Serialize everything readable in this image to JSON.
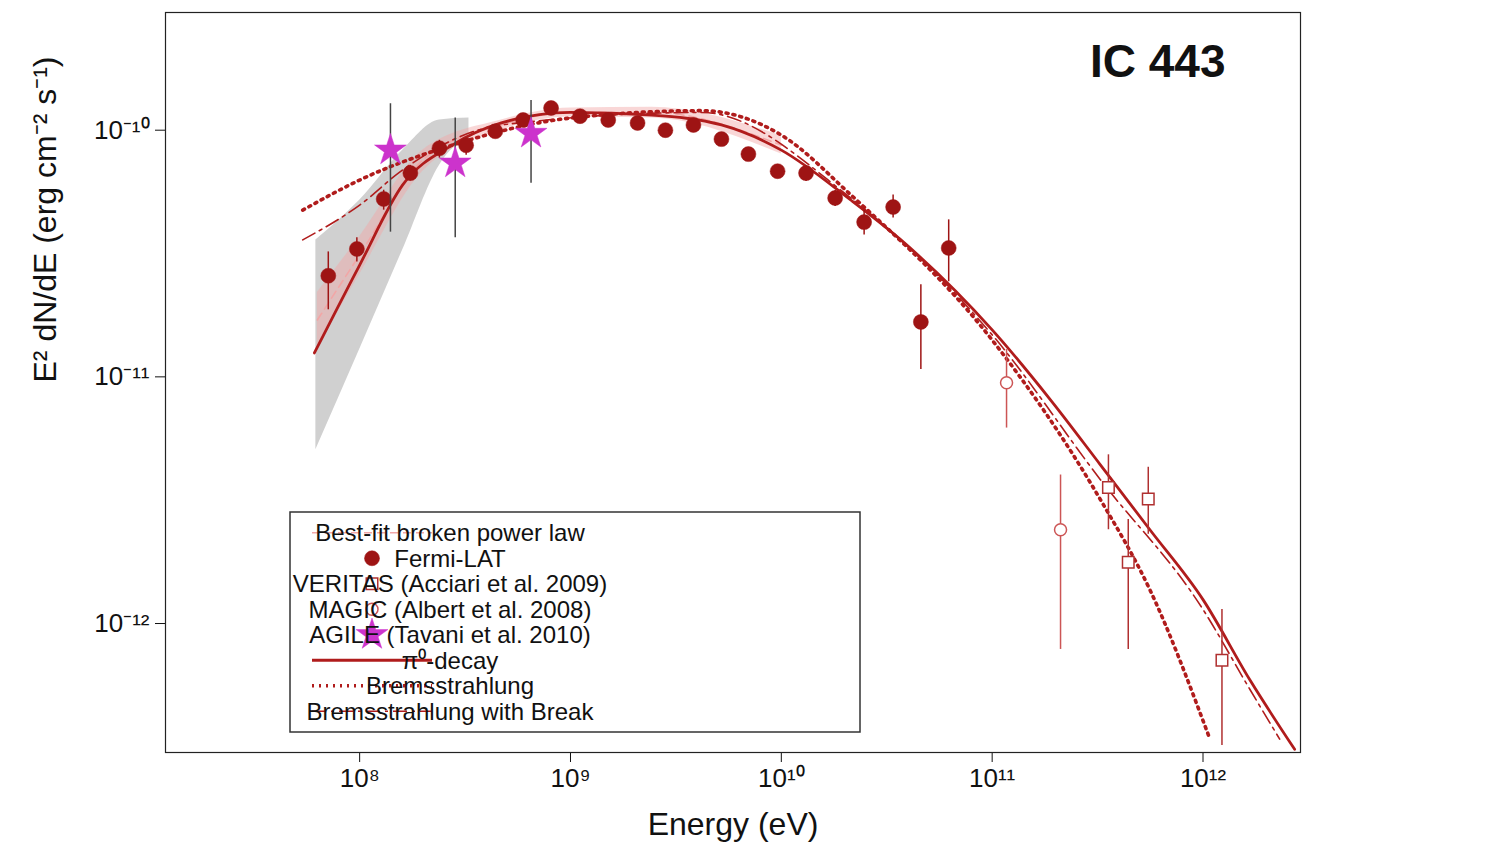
{
  "chart_data": {
    "type": "scatter",
    "title": "IC 443",
    "x_label": "Energy (eV)",
    "y_label": "E² dN/dE (erg cm⁻² s⁻¹)",
    "log": true,
    "xlim": [
      12000000.0,
      2900000000000.0
    ],
    "ylim": [
      3e-13,
      3e-10
    ],
    "xticks": [
      {
        "value": 100000000.0,
        "label": "10⁸"
      },
      {
        "value": 1000000000.0,
        "label": "10⁹"
      },
      {
        "value": 10000000000.0,
        "label": "10¹⁰"
      },
      {
        "value": 100000000000.0,
        "label": "10¹¹"
      },
      {
        "value": 1000000000000.0,
        "label": "10¹²"
      }
    ],
    "yticks": [
      {
        "value": 1e-12,
        "label": "10⁻¹²"
      },
      {
        "value": 1e-11,
        "label": "10⁻¹¹"
      },
      {
        "value": 1e-10,
        "label": "10⁻¹⁰"
      }
    ],
    "legend": "bottom-left",
    "bands": [
      {
        "color": "#c8c8c8",
        "x": [
          62000000.0,
          100000000.0,
          160000000.0,
          239000000.0,
          330000000.0
        ],
        "lower": [
          5.06e-12,
          1.29e-11,
          3.27e-11,
          7.2e-11,
          9.55e-11
        ],
        "upper": [
          3.59e-11,
          5.2e-11,
          8.3e-11,
          1.1e-10,
          1.12e-10
        ]
      }
    ],
    "series": [
      {
        "name": "Best-fit broken power law",
        "type": "line",
        "color": "#f2a6a6",
        "line_style": "dashed",
        "x": [
          63000000.0,
          100000000.0,
          199000000.0,
          470000000.0,
          1000000000.0,
          2430000000.0,
          10000000000.0
        ],
        "values": [
          1.7e-11,
          3.12e-11,
          7.56e-11,
          1.05e-10,
          1.18e-10,
          1.18e-10,
          8.7e-11
        ],
        "band_lower": [
          1.3e-11,
          2.6e-11,
          6.8e-11,
          1e-10,
          1.13e-10,
          1.12e-10,
          8e-11
        ],
        "band_upper": [
          2.2e-11,
          3.7e-11,
          8.3e-11,
          1.1e-10,
          1.23e-10,
          1.24e-10,
          9.5e-11
        ]
      },
      {
        "name": "Fermi-LAT",
        "type": "scatter",
        "color": "#9e1414",
        "marker": "circle",
        "x": [
          71000000.0,
          97000000.0,
          130000000.0,
          174000000.0,
          239000000.0,
          320000000.0,
          440000000.0,
          596000000.0,
          809000000.0,
          1110000000.0,
          1510000000.0,
          2080000000.0,
          2820000000.0,
          3830000000.0,
          5200000000.0,
          6980000000.0,
          9600000000.0,
          13100000000.0,
          18000000000.0,
          24700000000.0,
          33900000000.0,
          45900000000.0,
          62200000000.0
        ],
        "values": [
          2.57e-11,
          3.3e-11,
          5.26e-11,
          6.7e-11,
          8.45e-11,
          8.69e-11,
          9.9e-11,
          1.1e-10,
          1.23e-10,
          1.14e-10,
          1.1e-10,
          1.07e-10,
          1e-10,
          1.05e-10,
          9.2e-11,
          8e-11,
          6.82e-11,
          6.7e-11,
          5.31e-11,
          4.24e-11,
          4.88e-11,
          1.67e-11,
          3.33e-11
        ],
        "y_lower": [
          1.87e-11,
          2.92e-11,
          4.74e-11,
          6.22e-11,
          7.7e-11,
          7.92e-11,
          9.5e-11,
          1.05e-10,
          1.18e-10,
          1.09e-10,
          1.05e-10,
          1.02e-10,
          9.6e-11,
          1e-10,
          8.8e-11,
          7.6e-11,
          6.4e-11,
          6.2e-11,
          4.9e-11,
          3.76e-11,
          4.41e-11,
          1.07e-11,
          2.43e-11
        ],
        "y_upper": [
          3.21e-11,
          3.66e-11,
          5.71e-11,
          7.2e-11,
          9.1e-11,
          9.28e-11,
          1.03e-10,
          1.15e-10,
          1.28e-10,
          1.19e-10,
          1.15e-10,
          1.12e-10,
          1.04e-10,
          1.1e-10,
          9.6e-11,
          8.4e-11,
          7.2e-11,
          7.2e-11,
          5.7e-11,
          4.74e-11,
          5.46e-11,
          2.36e-11,
          4.33e-11
        ]
      },
      {
        "name": "VERITAS (Acciari et al. 2009)",
        "type": "scatter",
        "color": "#b03030",
        "marker": "open-square",
        "x": [
          356000000000.0,
          442000000000.0,
          550000000000.0,
          1230000000000.0
        ],
        "values": [
          3.56e-12,
          1.77e-12,
          3.2e-12,
          7.1e-13
        ],
        "y_lower": [
          2.4e-12,
          7.85e-13,
          2.3e-12,
          3.2e-13
        ],
        "y_upper": [
          4.83e-12,
          2.64e-12,
          4.3e-12,
          1.14e-12
        ]
      },
      {
        "name": "MAGIC (Albert et al. 2008)",
        "type": "scatter",
        "color": "#cc5555",
        "marker": "open-circle",
        "x": [
          117000000000.0,
          211000000000.0
        ],
        "values": [
          9.46e-12,
          2.4e-12
        ],
        "y_lower": [
          6.2e-12,
          7.85e-13
        ],
        "y_upper": [
          1.29e-11,
          4e-12
        ]
      },
      {
        "name": "AGILE (Tavani et al. 2010)",
        "type": "scatter",
        "color": "#cc33cc",
        "marker": "star",
        "x": [
          140000000.0,
          284000000.0,
          650000000.0
        ],
        "values": [
          8.3e-11,
          7.35e-11,
          9.7e-11
        ],
        "y_lower": [
          3.86e-11,
          3.66e-11,
          6.1e-11
        ],
        "y_upper": [
          1.28e-10,
          1.12e-10,
          1.32e-10
        ]
      },
      {
        "name": "π⁰-decay",
        "type": "line",
        "color": "#b01c1c",
        "line_style": "solid",
        "x": [
          61000000.0,
          100000000.0,
          160000000.0,
          275000000.0,
          470000000.0,
          1000000000.0,
          2430000000.0,
          5200000000.0,
          10000000000.0,
          21400000000.0,
          36900000000.0,
          100000000000.0,
          189000000000.0,
          326000000000.0,
          560000000000.0,
          1000000000000.0,
          1670000000000.0,
          2720000000000.0
        ],
        "values": [
          1.25e-11,
          2.84e-11,
          6e-11,
          8.7e-11,
          1.07e-10,
          1.18e-10,
          1.15e-10,
          1.05e-10,
          8.3e-11,
          5.2e-11,
          3.59e-11,
          1.55e-11,
          8.07e-12,
          4.4e-12,
          2.4e-12,
          1.25e-12,
          5.9e-13,
          3.09e-13
        ]
      },
      {
        "name": "Bremsstrahlung",
        "type": "line",
        "color": "#b01c1c",
        "line_style": "dotted",
        "x": [
          53700000.0,
          100000000.0,
          275000000.0,
          1000000000.0,
          4190000000.0,
          10000000000.0,
          21400000000.0,
          100000000000.0,
          326000000000.0,
          560000000000.0,
          1080000000000.0
        ],
        "values": [
          4.74e-11,
          6.28e-11,
          8.7e-11,
          1.12e-10,
          1.2e-10,
          9.55e-11,
          5.46e-11,
          1.41e-11,
          3.18e-12,
          1.37e-12,
          3.39e-13
        ]
      },
      {
        "name": "Bremsstrahlung with Break",
        "type": "line",
        "color": "#b01c1c",
        "line_style": "dashdot",
        "x": [
          53700000.0,
          100000000.0,
          160000000.0,
          470000000.0,
          4190000000.0,
          21400000000.0,
          100000000000.0,
          326000000000.0,
          1000000000000.0,
          1670000000000.0,
          2310000000000.0
        ],
        "values": [
          3.59e-11,
          4.97e-11,
          6.9e-11,
          1.05e-10,
          1.18e-10,
          5.3e-11,
          1.48e-11,
          3.83e-12,
          1.14e-12,
          5.4e-13,
          3.4e-13
        ]
      }
    ]
  }
}
